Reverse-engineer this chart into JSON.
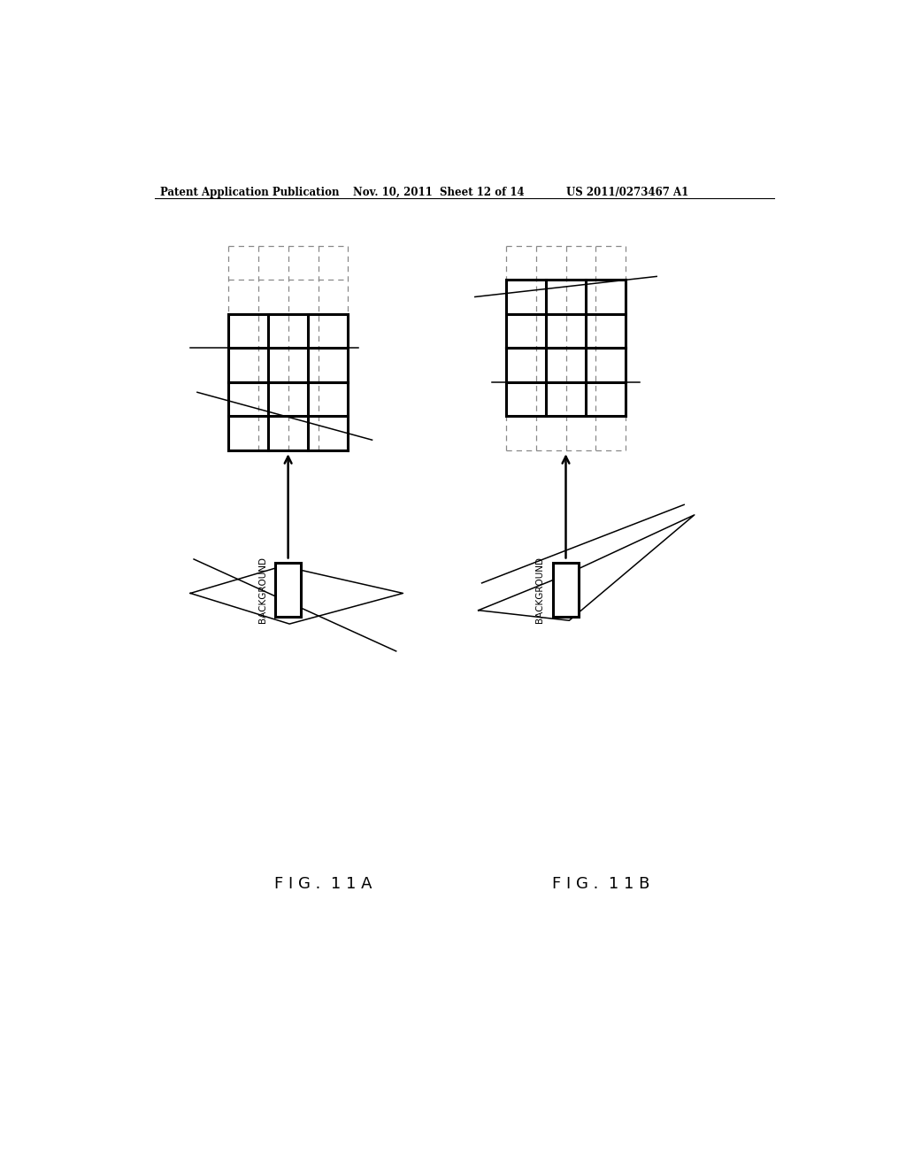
{
  "header_left": "Patent Application Publication",
  "header_mid": "Nov. 10, 2011  Sheet 12 of 14",
  "header_right": "US 2011/0273467 A1",
  "fig_label_A": "F I G .  1 1 A",
  "fig_label_B": "F I G .  1 1 B",
  "background_color": "#ffffff",
  "line_color": "#000000",
  "dashed_color": "#888888"
}
